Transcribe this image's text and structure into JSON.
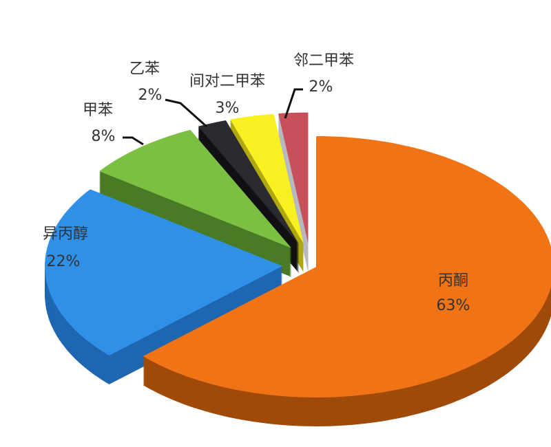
{
  "chart_data": {
    "type": "pie",
    "style": "3d-exploded",
    "title": "",
    "start_angle": "12 o'clock, clockwise",
    "slices": [
      {
        "label": "丙酮",
        "value": 63,
        "value_label": "63%",
        "color": "#f07415"
      },
      {
        "label": "异丙醇",
        "value": 22,
        "value_label": "22%",
        "color": "#3090e8"
      },
      {
        "label": "甲苯",
        "value": 8,
        "value_label": "8%",
        "color": "#7cc043"
      },
      {
        "label": "乙苯",
        "value": 2,
        "value_label": "2%",
        "color": "#2a2a30"
      },
      {
        "label": "间对二甲苯",
        "value": 3,
        "value_label": "3%",
        "color": "#f8f020"
      },
      {
        "label": "邻二甲苯",
        "value": 2,
        "value_label": "2%",
        "color": "#c8505a"
      }
    ],
    "side_colors": [
      "#a04a08",
      "#1f66b0",
      "#4a7a25",
      "#111114",
      "#b0a810",
      "#b8b8c0"
    ]
  }
}
